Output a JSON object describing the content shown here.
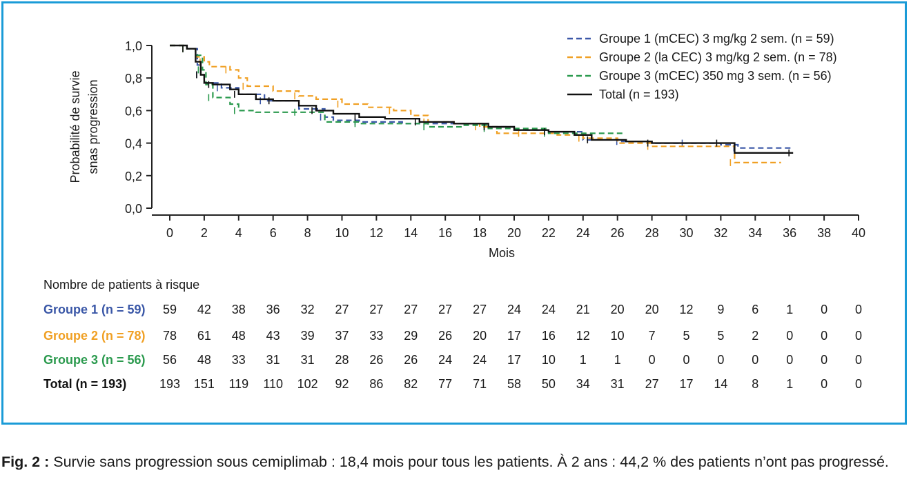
{
  "chart_data": {
    "type": "line",
    "subtype": "kaplan-meier",
    "xlabel": "Mois",
    "ylabel": [
      "Probabilité de survie",
      "snas progression"
    ],
    "xlim": [
      0,
      40
    ],
    "ylim": [
      0,
      1
    ],
    "xticks": [
      0,
      2,
      4,
      6,
      8,
      10,
      12,
      14,
      16,
      18,
      20,
      22,
      24,
      26,
      28,
      30,
      32,
      34,
      36,
      38,
      40
    ],
    "yticks": [
      "0,0",
      "0,2",
      "0,4",
      "0,6",
      "0,8",
      "1,0"
    ],
    "yticks_values": [
      0,
      0.2,
      0.4,
      0.6,
      0.8,
      1.0
    ],
    "grid": false,
    "legend_position": "top-right",
    "series": [
      {
        "name": "Groupe 1 (mCEC) 3 mg/kg 2 sem. (n = 59)",
        "color": "#3a57a7",
        "dash": "dashed",
        "x": [
          0,
          1.0,
          1.6,
          1.8,
          2.0,
          3.0,
          4.0,
          5.5,
          7.5,
          9.0,
          9.5,
          11.0,
          13.5,
          15.0,
          17.0,
          18.5,
          20.0,
          22.0,
          24.0,
          26.2,
          28.0,
          30.0,
          32.0,
          33.0,
          36.2
        ],
        "y": [
          1.0,
          0.98,
          0.88,
          0.82,
          0.77,
          0.74,
          0.7,
          0.66,
          0.61,
          0.56,
          0.54,
          0.53,
          0.52,
          0.52,
          0.52,
          0.5,
          0.48,
          0.47,
          0.42,
          0.41,
          0.4,
          0.4,
          0.39,
          0.37,
          0.37
        ]
      },
      {
        "name": "Groupe 2 (la CEC) 3 mg/kg 2 sem. (n = 78)",
        "color": "#f0a024",
        "dash": "dashed",
        "x": [
          0,
          1.0,
          1.5,
          2.0,
          2.3,
          3.5,
          4.0,
          4.5,
          6.0,
          7.5,
          8.5,
          10.0,
          11.5,
          13.0,
          14.0,
          15.0,
          16.5,
          18.0,
          19.0,
          20.5,
          22.5,
          24.0,
          26.0,
          28.0,
          31.0,
          32.8,
          35.5
        ],
        "y": [
          1.0,
          0.98,
          0.93,
          0.9,
          0.87,
          0.85,
          0.8,
          0.75,
          0.72,
          0.69,
          0.67,
          0.64,
          0.62,
          0.6,
          0.57,
          0.53,
          0.52,
          0.5,
          0.46,
          0.46,
          0.45,
          0.43,
          0.4,
          0.38,
          0.38,
          0.28,
          0.28
        ]
      },
      {
        "name": "Groupe 3 (mCEC) 350 mg 3 sem. (n = 56)",
        "color": "#2b9a4e",
        "dash": "dashed",
        "x": [
          0,
          1.0,
          1.5,
          1.9,
          2.1,
          2.5,
          3.5,
          4.0,
          5.0,
          7.5,
          9.0,
          11.0,
          13.0,
          15.0,
          17.0,
          18.5,
          20.0,
          22.0,
          26.3
        ],
        "y": [
          1.0,
          0.98,
          0.94,
          0.85,
          0.76,
          0.68,
          0.64,
          0.6,
          0.59,
          0.59,
          0.53,
          0.52,
          0.52,
          0.5,
          0.51,
          0.49,
          0.49,
          0.46,
          0.46
        ]
      },
      {
        "name": "Total (n = 193)",
        "color": "#111111",
        "dash": "solid",
        "x": [
          0,
          1.0,
          1.5,
          1.8,
          2.0,
          2.5,
          3.5,
          4.0,
          5.0,
          6.0,
          7.5,
          8.5,
          9.5,
          11.0,
          12.5,
          14.5,
          16.5,
          18.5,
          20.0,
          22.0,
          23.5,
          24.5,
          26.5,
          28.0,
          30.0,
          32.0,
          32.8,
          36.2
        ],
        "y": [
          1.0,
          0.98,
          0.9,
          0.82,
          0.77,
          0.76,
          0.73,
          0.7,
          0.67,
          0.66,
          0.63,
          0.6,
          0.58,
          0.56,
          0.55,
          0.53,
          0.52,
          0.5,
          0.48,
          0.47,
          0.45,
          0.42,
          0.41,
          0.4,
          0.4,
          0.4,
          0.34,
          0.34
        ]
      }
    ]
  },
  "risk_table": {
    "title": "Nombre de patients à risque",
    "rows": [
      {
        "label": "Groupe 1 (n = 59)",
        "color": "#3a57a7",
        "values": [
          "59",
          "42",
          "38",
          "36",
          "32",
          "27",
          "27",
          "27",
          "27",
          "27",
          "24",
          "24",
          "21",
          "20",
          "20",
          "12",
          "9",
          "6",
          "1",
          "0",
          "0"
        ]
      },
      {
        "label": "Groupe 2 (n = 78)",
        "color": "#f0a024",
        "values": [
          "78",
          "61",
          "48",
          "43",
          "39",
          "37",
          "33",
          "29",
          "26",
          "20",
          "17",
          "16",
          "12",
          "10",
          "7",
          "5",
          "5",
          "2",
          "0",
          "0",
          "0"
        ]
      },
      {
        "label": "Groupe 3 (n = 56)",
        "color": "#2b9a4e",
        "values": [
          "56",
          "48",
          "33",
          "31",
          "31",
          "28",
          "26",
          "26",
          "24",
          "24",
          "17",
          "10",
          "1",
          "1",
          "0",
          "0",
          "0",
          "0",
          "0",
          "0",
          "0"
        ]
      },
      {
        "label": "Total (n = 193)",
        "color": "#111111",
        "values": [
          "193",
          "151",
          "119",
          "110",
          "102",
          "92",
          "86",
          "82",
          "77",
          "71",
          "58",
          "50",
          "34",
          "31",
          "27",
          "17",
          "14",
          "8",
          "1",
          "0",
          "0"
        ]
      }
    ]
  },
  "caption": {
    "label": "Fig. 2 :",
    "text": " Survie sans progression sous cemiplimab : 18,4 mois pour tous les patients. À 2 ans : 44,2 % des patients n’ont pas progressé."
  },
  "colors": {
    "frame": "#1a9bd7",
    "axis": "#222222"
  }
}
